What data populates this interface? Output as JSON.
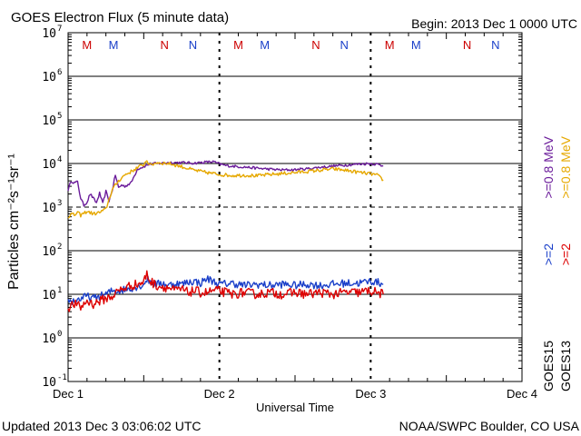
{
  "chart_data": {
    "type": "line",
    "title": "GOES Electron Flux (5 minute data)",
    "begin": "Begin: 2013 Dec 1 0000 UTC",
    "xlabel": "Universal Time",
    "ylabel": "Particles cm⁻²s⁻¹sr⁻¹",
    "footer_left": "Updated 2013 Dec  3 03:06:02 UTC",
    "footer_right": "NOAA/SWPC Boulder, CO USA",
    "x_unit": "hours since 2013 Dec 1 0000 UTC",
    "xlim": [
      0,
      72
    ],
    "ylim_log10": [
      -1,
      7
    ],
    "x_ticks": [
      {
        "x": 0,
        "label": "Dec 1"
      },
      {
        "x": 24,
        "label": "Dec 2"
      },
      {
        "x": 48,
        "label": "Dec 3"
      },
      {
        "x": 72,
        "label": "Dec 4"
      }
    ],
    "y_ticks": [
      {
        "exp": 7,
        "label": "7"
      },
      {
        "exp": 6,
        "label": "6"
      },
      {
        "exp": 5,
        "label": "5"
      },
      {
        "exp": 4,
        "label": "4"
      },
      {
        "exp": 3,
        "label": "3"
      },
      {
        "exp": 2,
        "label": "2"
      },
      {
        "exp": 1,
        "label": "1"
      },
      {
        "exp": 0,
        "label": "0"
      },
      {
        "exp": -1,
        "label": "-1"
      }
    ],
    "y_tick_base": "10",
    "threshold_dashed_exp": 3,
    "markers": [
      {
        "x": 3.0,
        "label": "M",
        "color": "#cc0000"
      },
      {
        "x": 7.2,
        "label": "M",
        "color": "#1a3fc9"
      },
      {
        "x": 15.3,
        "label": "N",
        "color": "#cc0000"
      },
      {
        "x": 19.8,
        "label": "N",
        "color": "#1a3fc9"
      },
      {
        "x": 27.0,
        "label": "M",
        "color": "#cc0000"
      },
      {
        "x": 31.2,
        "label": "M",
        "color": "#1a3fc9"
      },
      {
        "x": 39.3,
        "label": "N",
        "color": "#cc0000"
      },
      {
        "x": 43.8,
        "label": "N",
        "color": "#1a3fc9"
      },
      {
        "x": 51.0,
        "label": "M",
        "color": "#cc0000"
      },
      {
        "x": 55.2,
        "label": "M",
        "color": "#1a3fc9"
      },
      {
        "x": 63.3,
        "label": "N",
        "color": "#cc0000"
      },
      {
        "x": 67.8,
        "label": "N",
        "color": "#1a3fc9"
      }
    ],
    "legend": [
      {
        "label": ">=0.8 MeV",
        "color": "#e6a800"
      },
      {
        "label": ">=0.8 MeV",
        "color": "#6a1b9a"
      },
      {
        "label": ">=2",
        "color": "#dd0000"
      },
      {
        "label": ">=2",
        "color": "#1a3fc9"
      },
      {
        "label": "GOES13",
        "color": "#000000"
      },
      {
        "label": "GOES15",
        "color": "#000000"
      }
    ],
    "series": [
      {
        "name": "GOES15 >=0.8 MeV",
        "color": "#6a1b9a",
        "noise": 0.03,
        "x": [
          0,
          0.5,
          1,
          1.5,
          2,
          2.5,
          3,
          3.5,
          4,
          4.5,
          5,
          5.5,
          6,
          6.5,
          7,
          7.5,
          8,
          8.5,
          9,
          10,
          11,
          12,
          13,
          14,
          15,
          16,
          18,
          20,
          22,
          23,
          24,
          25,
          26,
          28,
          30,
          32,
          34,
          36,
          38,
          40,
          42,
          44,
          46,
          48,
          49,
          50
        ],
        "y": [
          2500,
          4000,
          3600,
          3800,
          1600,
          1100,
          1300,
          2000,
          1600,
          1250,
          2100,
          1200,
          2300,
          1400,
          2400,
          5500,
          2800,
          3200,
          3000,
          3600,
          7500,
          8500,
          9800,
          10000,
          10200,
          10500,
          10500,
          10200,
          10800,
          11000,
          9800,
          9000,
          8700,
          8300,
          7800,
          7400,
          7100,
          7200,
          7600,
          8200,
          8700,
          9200,
          9700,
          10000,
          9600,
          8800
        ]
      },
      {
        "name": "GOES13 >=0.8 MeV",
        "color": "#e6a800",
        "noise": 0.04,
        "x": [
          0,
          0.5,
          1,
          1.5,
          2,
          3,
          4,
          5,
          6,
          6.5,
          7,
          8,
          9,
          10,
          11,
          12,
          12.5,
          13,
          14,
          16,
          18,
          20,
          22,
          24,
          26,
          28,
          30,
          32,
          34,
          36,
          38,
          40,
          42,
          44,
          46,
          48,
          49,
          50
        ],
        "y": [
          600,
          700,
          650,
          750,
          650,
          800,
          700,
          750,
          900,
          1500,
          2500,
          4000,
          5500,
          6500,
          8000,
          9500,
          12000,
          9000,
          10500,
          10000,
          8500,
          7000,
          6200,
          5600,
          5300,
          5400,
          5200,
          5600,
          5900,
          6200,
          6600,
          7000,
          7500,
          7000,
          6300,
          5800,
          5400,
          4200
        ]
      },
      {
        "name": "GOES15 >=2 MeV",
        "color": "#1a3fc9",
        "noise": 0.09,
        "x": [
          0,
          1,
          2,
          3,
          4,
          5,
          6,
          7,
          8,
          9,
          10,
          11,
          12,
          12.5,
          13,
          14,
          15,
          16,
          17,
          18,
          19,
          20,
          21,
          22,
          23,
          24,
          26,
          28,
          30,
          32,
          34,
          36,
          38,
          40,
          42,
          44,
          46,
          48,
          49,
          50
        ],
        "y": [
          7,
          7,
          8,
          9,
          8,
          9,
          10,
          12,
          12,
          13,
          14,
          15,
          17,
          22,
          20,
          17,
          18,
          16,
          18,
          17,
          19,
          20,
          18,
          23,
          20,
          17,
          18,
          16,
          17,
          16,
          17,
          16,
          17,
          16,
          17,
          18,
          18,
          20,
          19,
          17
        ]
      },
      {
        "name": "GOES13 >=2 MeV",
        "color": "#dd0000",
        "noise": 0.11,
        "x": [
          0,
          1,
          2,
          3,
          4,
          5,
          6,
          7,
          8,
          9,
          10,
          11,
          12,
          12.5,
          13,
          14,
          15,
          16,
          17,
          18,
          19,
          20,
          21,
          22,
          23,
          24,
          26,
          28,
          30,
          32,
          34,
          36,
          38,
          40,
          42,
          44,
          46,
          48,
          49,
          50
        ],
        "y": [
          5,
          6,
          5,
          7,
          6,
          7,
          8,
          9,
          12,
          14,
          16,
          17,
          19,
          30,
          20,
          16,
          15,
          14,
          12,
          13,
          11,
          12,
          11,
          11,
          12,
          12,
          10,
          11,
          10,
          11,
          10,
          11,
          10,
          11,
          10,
          11,
          11,
          12,
          11,
          10
        ]
      }
    ]
  }
}
